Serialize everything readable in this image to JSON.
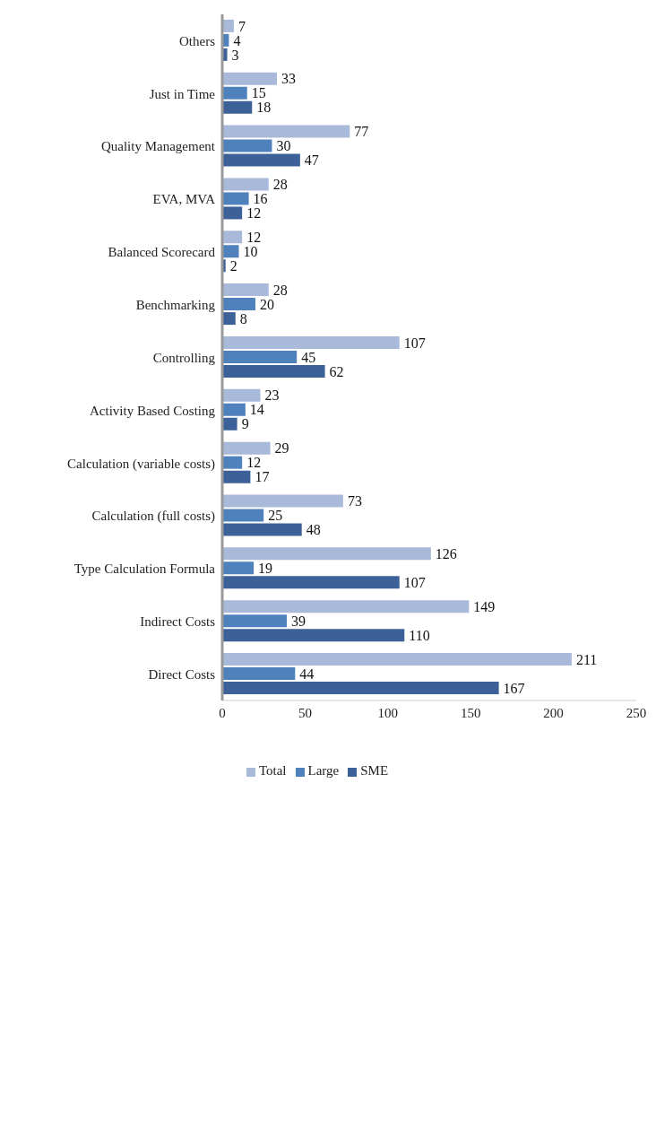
{
  "chart_data": {
    "type": "bar",
    "orientation": "horizontal",
    "categories": [
      "Others",
      "Just in Time",
      "Quality Management",
      "EVA, MVA",
      "Balanced Scorecard",
      "Benchmarking",
      "Controlling",
      "Activity Based Costing",
      "Calculation (variable costs)",
      "Calculation (full costs)",
      "Type Calculation Formula",
      "Indirect Costs",
      "Direct Costs"
    ],
    "series": [
      {
        "name": "Total",
        "color": "#a9b9da",
        "values": [
          7,
          33,
          77,
          28,
          12,
          28,
          107,
          23,
          29,
          73,
          126,
          149,
          211
        ]
      },
      {
        "name": "Large",
        "color": "#4f81bd",
        "values": [
          4,
          15,
          30,
          16,
          10,
          20,
          45,
          14,
          12,
          25,
          19,
          39,
          44
        ]
      },
      {
        "name": "SME",
        "color": "#3c6198",
        "values": [
          3,
          18,
          47,
          12,
          2,
          8,
          62,
          9,
          17,
          48,
          107,
          110,
          167
        ]
      }
    ],
    "xlim": [
      0,
      250
    ],
    "xticks": [
      0,
      50,
      100,
      150,
      200,
      250
    ],
    "data_labels": true,
    "legend": "bottom",
    "grid": false
  }
}
